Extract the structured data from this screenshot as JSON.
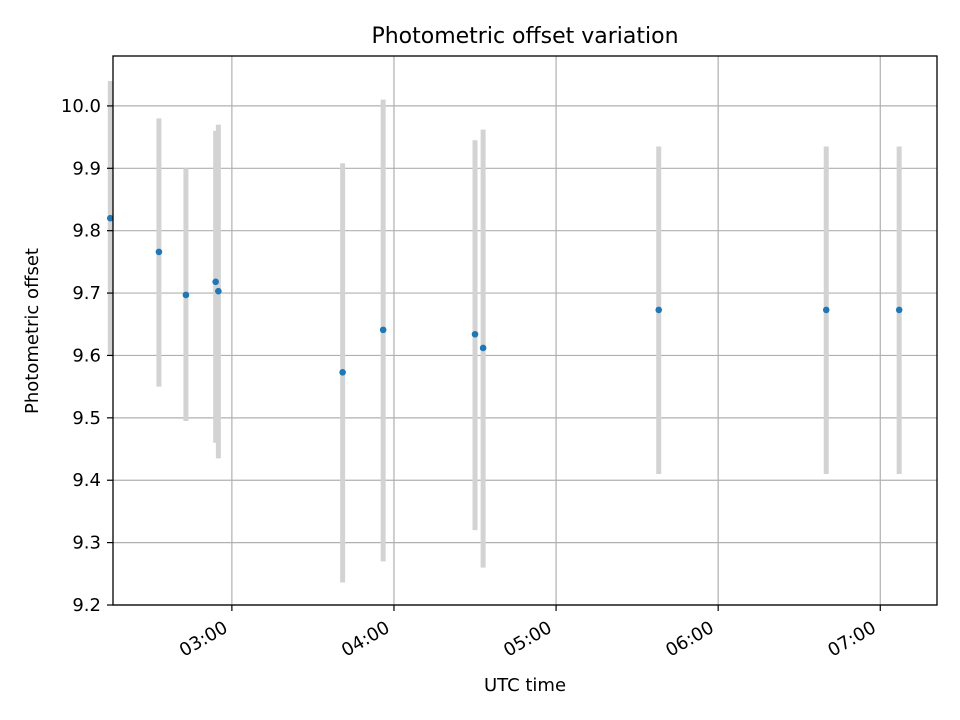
{
  "chart_data": {
    "type": "scatter",
    "title": "Photometric offset variation",
    "xlabel": "UTC time",
    "ylabel": "Photometric offset",
    "grid": true,
    "legend": "none",
    "x_range": [
      "02:16",
      "07:21"
    ],
    "y_range": [
      9.2,
      10.08
    ],
    "x_ticks": [
      "03:00",
      "04:00",
      "05:00",
      "06:00",
      "07:00"
    ],
    "y_ticks": [
      9.2,
      9.3,
      9.4,
      9.5,
      9.6,
      9.7,
      9.8,
      9.9,
      10.0
    ],
    "colors": {
      "point": "#1f77b4",
      "errorbar": "#d3d3d3",
      "grid": "#b0b0b0"
    },
    "series": [
      {
        "points": [
          {
            "x": "02:15",
            "y": 9.82,
            "ymin": 9.6,
            "ymax": 10.04
          },
          {
            "x": "02:33",
            "y": 9.766,
            "ymin": 9.55,
            "ymax": 9.98
          },
          {
            "x": "02:43",
            "y": 9.697,
            "ymin": 9.495,
            "ymax": 9.9
          },
          {
            "x": "02:54",
            "y": 9.718,
            "ymin": 9.46,
            "ymax": 9.96
          },
          {
            "x": "02:55",
            "y": 9.703,
            "ymin": 9.435,
            "ymax": 9.97
          },
          {
            "x": "03:41",
            "y": 9.573,
            "ymin": 9.236,
            "ymax": 9.908
          },
          {
            "x": "03:56",
            "y": 9.641,
            "ymin": 9.27,
            "ymax": 10.01
          },
          {
            "x": "04:30",
            "y": 9.634,
            "ymin": 9.32,
            "ymax": 9.945
          },
          {
            "x": "04:33",
            "y": 9.612,
            "ymin": 9.26,
            "ymax": 9.962
          },
          {
            "x": "05:38",
            "y": 9.673,
            "ymin": 9.41,
            "ymax": 9.935
          },
          {
            "x": "06:40",
            "y": 9.673,
            "ymin": 9.41,
            "ymax": 9.935
          },
          {
            "x": "07:07",
            "y": 9.673,
            "ymin": 9.41,
            "ymax": 9.935
          }
        ]
      }
    ]
  }
}
